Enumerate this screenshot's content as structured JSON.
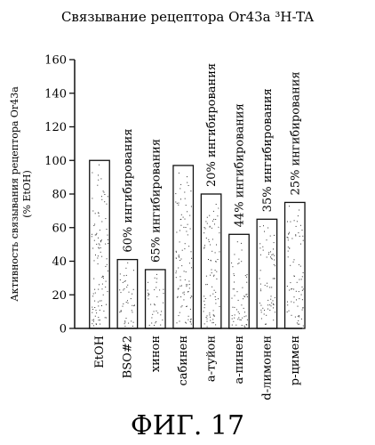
{
  "chart_data": {
    "type": "bar",
    "title": "Связывание рецептора Or43a ³H-TA",
    "ylabel_line1": "Активность связывания рецептора Or43a",
    "ylabel_line2": "(% EtOH)",
    "xlabel": "",
    "ylim": [
      0,
      160
    ],
    "yticks": [
      0,
      20,
      40,
      60,
      80,
      100,
      120,
      140,
      160
    ],
    "categories": [
      "EtOH",
      "BSO#2",
      "хинон",
      "сабинен",
      "a-туйон",
      "a-пинен",
      "d-лимонен",
      "p-цимен"
    ],
    "values": [
      100,
      41,
      35,
      97,
      80,
      56,
      65,
      75
    ],
    "annotations": [
      "",
      "60% ингибирования",
      "65% ингибирования",
      "",
      "20% ингибирования",
      "44% ингибирования",
      "35% ингибирования",
      "25% ингибирования"
    ],
    "grid": false,
    "legend": "none"
  },
  "figure_caption": "ФИГ. 17"
}
